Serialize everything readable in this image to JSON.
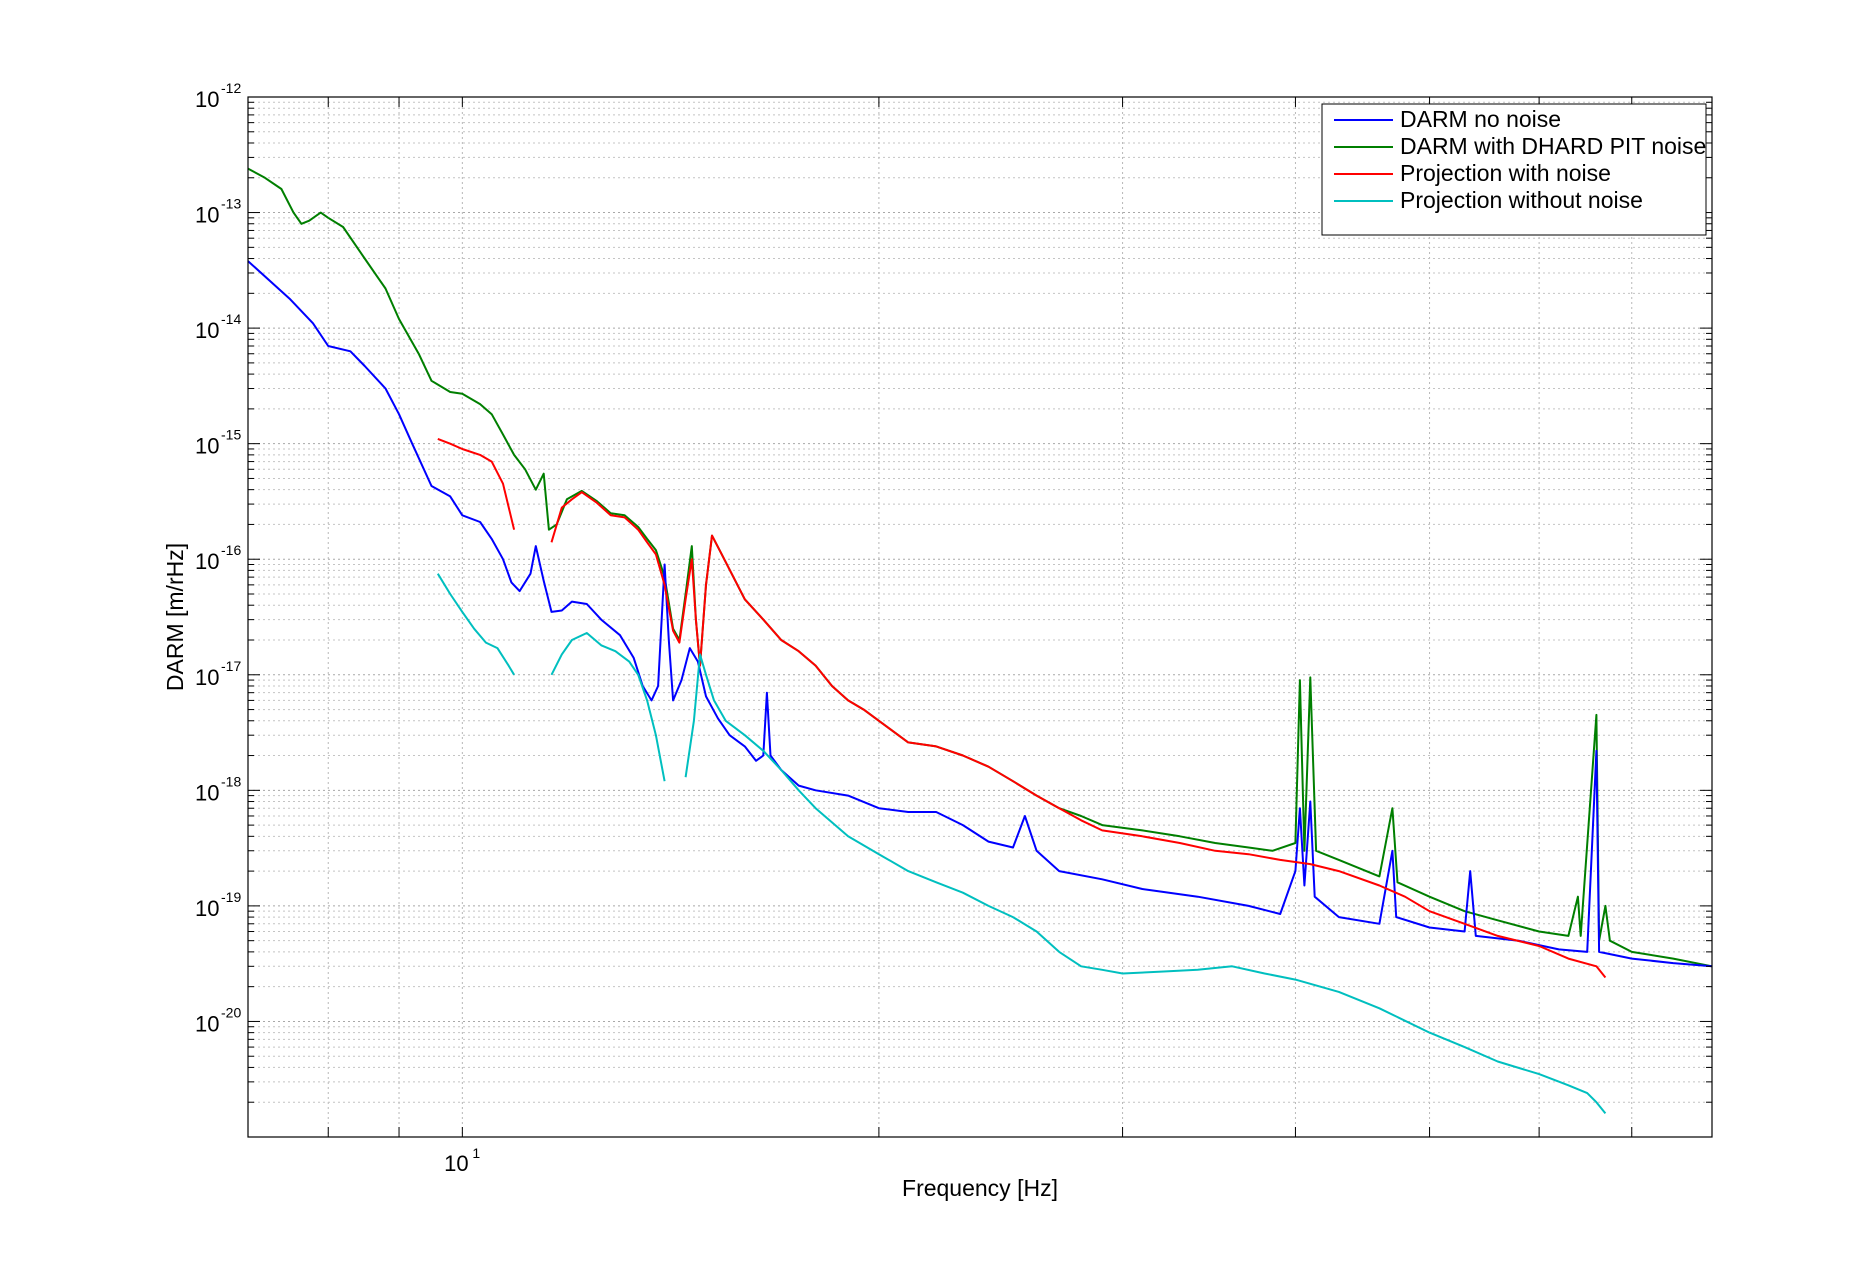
{
  "chart_data": {
    "type": "line",
    "xlabel": "Frequency [Hz]",
    "ylabel": "DARM [m/rHz]",
    "x_scale": "log",
    "y_scale": "log",
    "xlim": [
      7,
      80
    ],
    "ylim": [
      1e-21,
      1e-12
    ],
    "grid": true,
    "legend_position": "top-right",
    "x_tick_labels": [
      {
        "value": 10,
        "base": "10",
        "exp": "1"
      }
    ],
    "y_tick_labels": [
      {
        "value": 1e-12,
        "base": "10",
        "exp": "-12"
      },
      {
        "value": 1e-13,
        "base": "10",
        "exp": "-13"
      },
      {
        "value": 1e-14,
        "base": "10",
        "exp": "-14"
      },
      {
        "value": 1e-15,
        "base": "10",
        "exp": "-15"
      },
      {
        "value": 1e-16,
        "base": "10",
        "exp": "-16"
      },
      {
        "value": 1e-17,
        "base": "10",
        "exp": "-17"
      },
      {
        "value": 1e-18,
        "base": "10",
        "exp": "-18"
      },
      {
        "value": 1e-19,
        "base": "10",
        "exp": "-19"
      },
      {
        "value": 1e-20,
        "base": "10",
        "exp": "-20"
      }
    ],
    "series": [
      {
        "name": "DARM no noise",
        "color": "#0000ff",
        "points": [
          [
            7.0,
            3.8e-14
          ],
          [
            7.5,
            1.8e-14
          ],
          [
            7.8,
            1.1e-14
          ],
          [
            8.0,
            7e-15
          ],
          [
            8.3,
            6.3e-15
          ],
          [
            8.5,
            4.7e-15
          ],
          [
            8.8,
            3e-15
          ],
          [
            9.0,
            1.8e-15
          ],
          [
            9.2,
            1e-15
          ],
          [
            9.5,
            4.3e-16
          ],
          [
            9.8,
            3.5e-16
          ],
          [
            10.0,
            2.4e-16
          ],
          [
            10.3,
            2.1e-16
          ],
          [
            10.5,
            1.5e-16
          ],
          [
            10.7,
            1e-16
          ],
          [
            10.85,
            6.3e-17
          ],
          [
            11.0,
            5.3e-17
          ],
          [
            11.2,
            7.5e-17
          ],
          [
            11.3,
            1.3e-16
          ],
          [
            11.45,
            6.5e-17
          ],
          [
            11.6,
            3.5e-17
          ],
          [
            11.8,
            3.6e-17
          ],
          [
            12.0,
            4.3e-17
          ],
          [
            12.3,
            4.1e-17
          ],
          [
            12.6,
            3e-17
          ],
          [
            13.0,
            2.2e-17
          ],
          [
            13.3,
            1.4e-17
          ],
          [
            13.5,
            8e-18
          ],
          [
            13.7,
            6e-18
          ],
          [
            13.85,
            8e-18
          ],
          [
            14.0,
            9e-17
          ],
          [
            14.1,
            2e-17
          ],
          [
            14.2,
            6e-18
          ],
          [
            14.4,
            9e-18
          ],
          [
            14.6,
            1.7e-17
          ],
          [
            14.8,
            1.3e-17
          ],
          [
            15.0,
            6.5e-18
          ],
          [
            15.3,
            4.2e-18
          ],
          [
            15.6,
            3e-18
          ],
          [
            16.0,
            2.4e-18
          ],
          [
            16.3,
            1.8e-18
          ],
          [
            16.5,
            2e-18
          ],
          [
            16.6,
            7e-18
          ],
          [
            16.7,
            2e-18
          ],
          [
            17.0,
            1.5e-18
          ],
          [
            17.5,
            1.1e-18
          ],
          [
            18.0,
            1e-18
          ],
          [
            19.0,
            9e-19
          ],
          [
            20.0,
            7e-19
          ],
          [
            21.0,
            6.5e-19
          ],
          [
            22.0,
            6.5e-19
          ],
          [
            23.0,
            5e-19
          ],
          [
            24.0,
            3.6e-19
          ],
          [
            25.0,
            3.2e-19
          ],
          [
            25.5,
            6e-19
          ],
          [
            26.0,
            3e-19
          ],
          [
            27.0,
            2e-19
          ],
          [
            29.0,
            1.7e-19
          ],
          [
            31.0,
            1.4e-19
          ],
          [
            34.0,
            1.2e-19
          ],
          [
            37.0,
            1e-19
          ],
          [
            39.0,
            8.5e-20
          ],
          [
            40.0,
            2e-19
          ],
          [
            40.3,
            7e-19
          ],
          [
            40.6,
            1.5e-19
          ],
          [
            41.0,
            8e-19
          ],
          [
            41.3,
            1.2e-19
          ],
          [
            43.0,
            8e-20
          ],
          [
            46.0,
            7e-20
          ],
          [
            47.0,
            3e-19
          ],
          [
            47.3,
            8e-20
          ],
          [
            50.0,
            6.5e-20
          ],
          [
            53.0,
            6e-20
          ],
          [
            53.5,
            2e-19
          ],
          [
            54.0,
            5.5e-20
          ],
          [
            58.0,
            5e-20
          ],
          [
            62.0,
            4.2e-20
          ],
          [
            65.0,
            4e-20
          ],
          [
            66.0,
            2.2e-18
          ],
          [
            66.3,
            4e-20
          ],
          [
            70.0,
            3.5e-20
          ],
          [
            75.0,
            3.2e-20
          ],
          [
            80.0,
            3e-20
          ]
        ]
      },
      {
        "name": "DARM with DHARD PIT noise",
        "color": "#007f00",
        "points": [
          [
            7.0,
            2.4e-13
          ],
          [
            7.2,
            2e-13
          ],
          [
            7.4,
            1.6e-13
          ],
          [
            7.55,
            1e-13
          ],
          [
            7.65,
            8e-14
          ],
          [
            7.75,
            8.5e-14
          ],
          [
            7.9,
            1e-13
          ],
          [
            8.0,
            9e-14
          ],
          [
            8.2,
            7.5e-14
          ],
          [
            8.5,
            4e-14
          ],
          [
            8.8,
            2.2e-14
          ],
          [
            9.0,
            1.2e-14
          ],
          [
            9.3,
            6e-15
          ],
          [
            9.5,
            3.5e-15
          ],
          [
            9.8,
            2.8e-15
          ],
          [
            10.0,
            2.7e-15
          ],
          [
            10.3,
            2.2e-15
          ],
          [
            10.5,
            1.8e-15
          ],
          [
            10.7,
            1.2e-15
          ],
          [
            10.9,
            8e-16
          ],
          [
            11.1,
            6e-16
          ],
          [
            11.3,
            4e-16
          ],
          [
            11.45,
            5.5e-16
          ],
          [
            11.55,
            1.8e-16
          ],
          [
            11.7,
            2e-16
          ],
          [
            11.9,
            3.3e-16
          ],
          [
            12.2,
            3.9e-16
          ],
          [
            12.5,
            3.2e-16
          ],
          [
            12.8,
            2.5e-16
          ],
          [
            13.1,
            2.4e-16
          ],
          [
            13.4,
            1.9e-16
          ],
          [
            13.6,
            1.5e-16
          ],
          [
            13.8,
            1.2e-16
          ],
          [
            14.0,
            7e-17
          ],
          [
            14.2,
            2.5e-17
          ],
          [
            14.35,
            2e-17
          ],
          [
            14.5,
            5e-17
          ],
          [
            14.65,
            1.3e-16
          ],
          [
            14.75,
            3e-17
          ],
          [
            14.85,
            1.2e-17
          ],
          [
            15.0,
            6e-17
          ],
          [
            15.15,
            1.6e-16
          ],
          [
            15.4,
            1.1e-16
          ],
          [
            15.7,
            7e-17
          ],
          [
            16.0,
            4.5e-17
          ],
          [
            16.5,
            3e-17
          ],
          [
            17.0,
            2e-17
          ],
          [
            17.5,
            1.6e-17
          ],
          [
            18.0,
            1.2e-17
          ],
          [
            18.5,
            8e-18
          ],
          [
            19.0,
            6e-18
          ],
          [
            19.5,
            5e-18
          ],
          [
            20.0,
            4e-18
          ],
          [
            21.0,
            2.6e-18
          ],
          [
            22.0,
            2.4e-18
          ],
          [
            23.0,
            2e-18
          ],
          [
            24.0,
            1.6e-18
          ],
          [
            25.0,
            1.2e-18
          ],
          [
            26.0,
            9e-19
          ],
          [
            27.0,
            7e-19
          ],
          [
            28.0,
            6e-19
          ],
          [
            29.0,
            5e-19
          ],
          [
            31.0,
            4.5e-19
          ],
          [
            33.0,
            4e-19
          ],
          [
            35.0,
            3.5e-19
          ],
          [
            37.0,
            3.2e-19
          ],
          [
            38.5,
            3e-19
          ],
          [
            40.0,
            3.5e-19
          ],
          [
            40.3,
            9e-18
          ],
          [
            40.6,
            3e-19
          ],
          [
            41.0,
            9.5e-18
          ],
          [
            41.4,
            3e-19
          ],
          [
            43.0,
            2.5e-19
          ],
          [
            46.0,
            1.8e-19
          ],
          [
            47.0,
            7e-19
          ],
          [
            47.4,
            1.6e-19
          ],
          [
            50.0,
            1.2e-19
          ],
          [
            53.0,
            9e-20
          ],
          [
            56.0,
            7.5e-20
          ],
          [
            60.0,
            6e-20
          ],
          [
            63.0,
            5.5e-20
          ],
          [
            64.0,
            1.2e-19
          ],
          [
            64.3,
            5.5e-20
          ],
          [
            66.0,
            4.5e-18
          ],
          [
            66.3,
            5e-20
          ],
          [
            67.0,
            1e-19
          ],
          [
            67.5,
            5e-20
          ],
          [
            70.0,
            4e-20
          ],
          [
            75.0,
            3.5e-20
          ],
          [
            80.0,
            3e-20
          ]
        ]
      },
      {
        "name": "Projection with noise",
        "color": "#ff0000",
        "points": [
          [
            9.6,
            1.1e-15
          ],
          [
            9.8,
            1e-15
          ],
          [
            10.0,
            9e-16
          ],
          [
            10.3,
            8e-16
          ],
          [
            10.5,
            7e-16
          ],
          [
            10.7,
            4.5e-16
          ],
          [
            10.9,
            1.8e-16
          ],
          [
            null,
            null
          ],
          [
            11.6,
            1.4e-16
          ],
          [
            11.8,
            2.8e-16
          ],
          [
            12.0,
            3.3e-16
          ],
          [
            12.2,
            3.8e-16
          ],
          [
            12.5,
            3.1e-16
          ],
          [
            12.8,
            2.4e-16
          ],
          [
            13.1,
            2.3e-16
          ],
          [
            13.4,
            1.8e-16
          ],
          [
            13.6,
            1.4e-16
          ],
          [
            13.8,
            1.1e-16
          ],
          [
            14.0,
            6e-17
          ],
          [
            14.2,
            2.4e-17
          ],
          [
            14.35,
            1.9e-17
          ],
          [
            14.5,
            4.5e-17
          ],
          [
            14.65,
            1e-16
          ],
          [
            14.75,
            3e-17
          ],
          [
            14.85,
            1.2e-17
          ],
          [
            15.0,
            6e-17
          ],
          [
            15.15,
            1.6e-16
          ],
          [
            15.4,
            1.1e-16
          ],
          [
            15.7,
            7e-17
          ],
          [
            16.0,
            4.5e-17
          ],
          [
            16.5,
            3e-17
          ],
          [
            17.0,
            2e-17
          ],
          [
            17.5,
            1.6e-17
          ],
          [
            18.0,
            1.2e-17
          ],
          [
            18.5,
            8e-18
          ],
          [
            19.0,
            6e-18
          ],
          [
            19.5,
            5e-18
          ],
          [
            20.0,
            4e-18
          ],
          [
            21.0,
            2.6e-18
          ],
          [
            22.0,
            2.4e-18
          ],
          [
            23.0,
            2e-18
          ],
          [
            24.0,
            1.6e-18
          ],
          [
            25.0,
            1.2e-18
          ],
          [
            26.0,
            9e-19
          ],
          [
            27.0,
            7e-19
          ],
          [
            28.0,
            5.5e-19
          ],
          [
            29.0,
            4.5e-19
          ],
          [
            31.0,
            4e-19
          ],
          [
            33.0,
            3.5e-19
          ],
          [
            35.0,
            3e-19
          ],
          [
            37.0,
            2.8e-19
          ],
          [
            39.0,
            2.5e-19
          ],
          [
            41.0,
            2.3e-19
          ],
          [
            43.0,
            2e-19
          ],
          [
            46.0,
            1.5e-19
          ],
          [
            48.0,
            1.2e-19
          ],
          [
            50.0,
            9e-20
          ],
          [
            53.0,
            7e-20
          ],
          [
            56.0,
            5.5e-20
          ],
          [
            60.0,
            4.5e-20
          ],
          [
            63.0,
            3.5e-20
          ],
          [
            66.0,
            3e-20
          ],
          [
            67.0,
            2.4e-20
          ]
        ]
      },
      {
        "name": "Projection without noise",
        "color": "#00bfbf",
        "points": [
          [
            9.6,
            7.5e-17
          ],
          [
            9.8,
            5e-17
          ],
          [
            10.0,
            3.5e-17
          ],
          [
            10.2,
            2.5e-17
          ],
          [
            10.4,
            1.9e-17
          ],
          [
            10.6,
            1.7e-17
          ],
          [
            10.8,
            1.2e-17
          ],
          [
            10.9,
            1e-17
          ],
          [
            null,
            null
          ],
          [
            11.6,
            1e-17
          ],
          [
            11.8,
            1.5e-17
          ],
          [
            12.0,
            2e-17
          ],
          [
            12.3,
            2.3e-17
          ],
          [
            12.6,
            1.8e-17
          ],
          [
            12.9,
            1.6e-17
          ],
          [
            13.2,
            1.3e-17
          ],
          [
            13.4,
            1e-17
          ],
          [
            13.6,
            6e-18
          ],
          [
            13.8,
            3e-18
          ],
          [
            14.0,
            1.2e-18
          ],
          [
            null,
            null
          ],
          [
            14.5,
            1.3e-18
          ],
          [
            14.7,
            4e-18
          ],
          [
            14.85,
            1.5e-17
          ],
          [
            15.0,
            1e-17
          ],
          [
            15.2,
            6e-18
          ],
          [
            15.5,
            4e-18
          ],
          [
            16.0,
            3e-18
          ],
          [
            16.5,
            2.2e-18
          ],
          [
            17.0,
            1.5e-18
          ],
          [
            17.5,
            1e-18
          ],
          [
            18.0,
            7e-19
          ],
          [
            19.0,
            4e-19
          ],
          [
            20.0,
            2.8e-19
          ],
          [
            21.0,
            2e-19
          ],
          [
            22.0,
            1.6e-19
          ],
          [
            23.0,
            1.3e-19
          ],
          [
            24.0,
            1e-19
          ],
          [
            25.0,
            8e-20
          ],
          [
            26.0,
            6e-20
          ],
          [
            27.0,
            4e-20
          ],
          [
            28.0,
            3e-20
          ],
          [
            29.0,
            2.8e-20
          ],
          [
            30.0,
            2.6e-20
          ],
          [
            32.0,
            2.7e-20
          ],
          [
            34.0,
            2.8e-20
          ],
          [
            36.0,
            3e-20
          ],
          [
            38.0,
            2.6e-20
          ],
          [
            40.0,
            2.3e-20
          ],
          [
            43.0,
            1.8e-20
          ],
          [
            46.0,
            1.3e-20
          ],
          [
            50.0,
            8e-21
          ],
          [
            53.0,
            6e-21
          ],
          [
            56.0,
            4.5e-21
          ],
          [
            60.0,
            3.5e-21
          ],
          [
            63.0,
            2.8e-21
          ],
          [
            65.0,
            2.4e-21
          ],
          [
            66.0,
            2e-21
          ],
          [
            67.0,
            1.6e-21
          ]
        ]
      }
    ]
  }
}
